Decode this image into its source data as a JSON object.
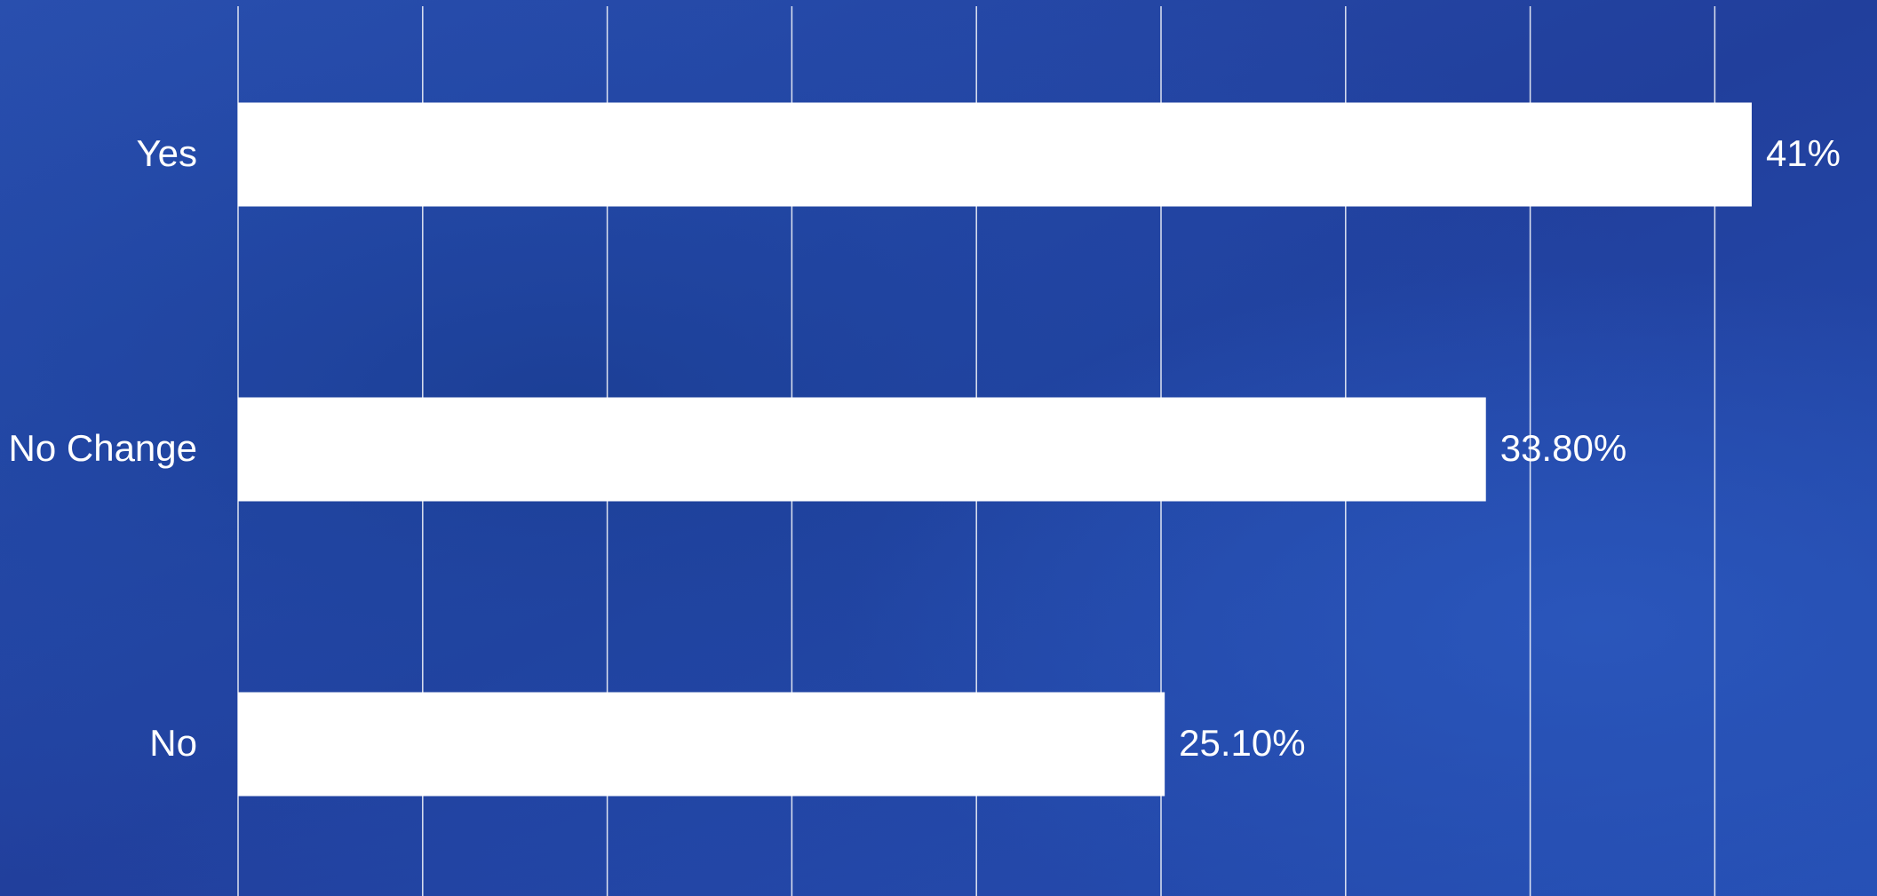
{
  "chart_data": {
    "type": "bar",
    "orientation": "horizontal",
    "categories": [
      "Yes",
      "No Change",
      "No"
    ],
    "values": [
      41,
      33.8,
      25.1
    ],
    "value_labels": [
      "41%",
      "33.80%",
      "25.10%"
    ],
    "color": "#ffffff",
    "xlim": [
      0,
      45
    ],
    "xticks": [
      0,
      5,
      10,
      15,
      20,
      25,
      30,
      35,
      40
    ],
    "grid": true
  }
}
